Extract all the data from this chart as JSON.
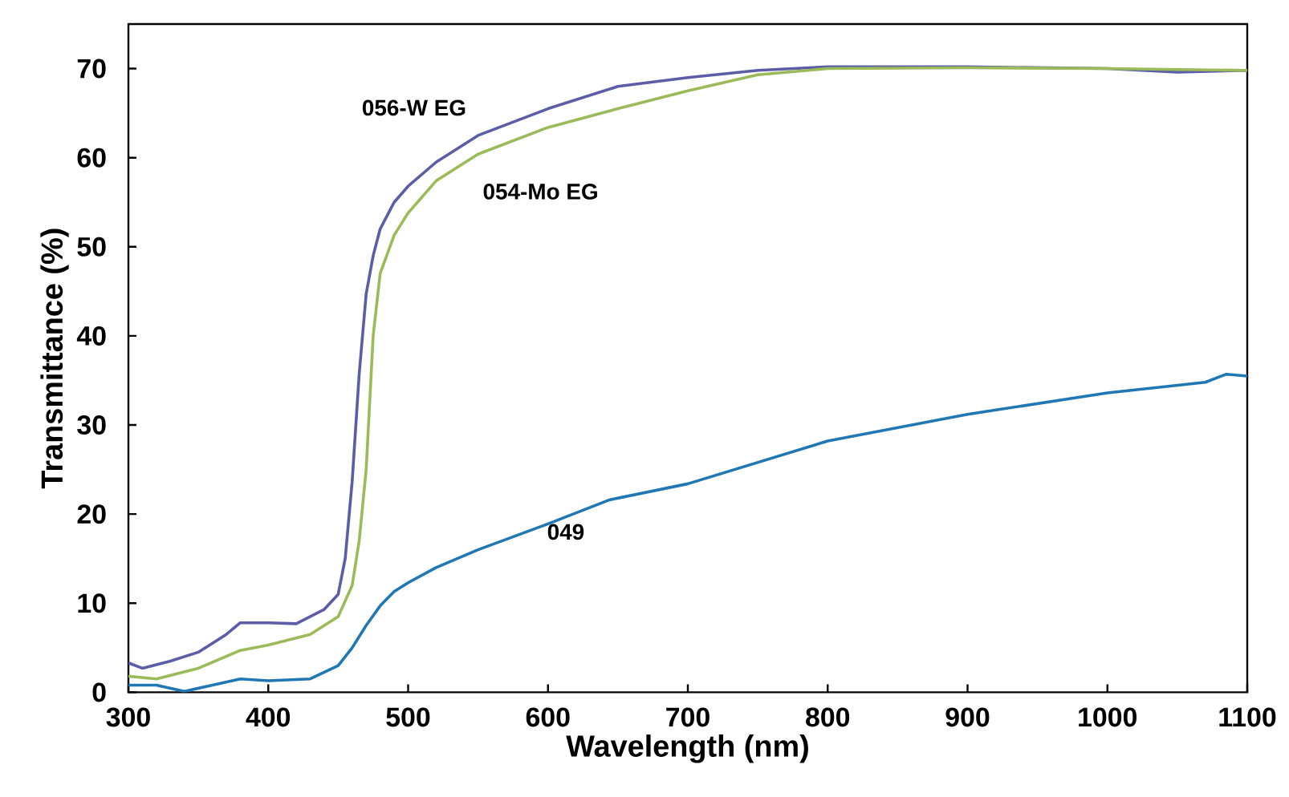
{
  "chart_data": {
    "type": "line",
    "xlabel": "Wavelength (nm)",
    "ylabel": "Transmittance (%)",
    "xlim": [
      300,
      1100
    ],
    "xticks": [
      300,
      400,
      500,
      600,
      700,
      800,
      900,
      1000,
      1100
    ],
    "ylim": [
      0,
      75
    ],
    "yticks": [
      0,
      10,
      20,
      30,
      40,
      50,
      60,
      70
    ],
    "grid": false,
    "legend": false,
    "marker": "none",
    "line_style": "solid",
    "series": [
      {
        "name": "056-W EG",
        "color": "#5b5ea6",
        "x": [
          300,
          310,
          330,
          350,
          370,
          380,
          400,
          420,
          440,
          450,
          455,
          460,
          465,
          470,
          475,
          480,
          490,
          500,
          520,
          550,
          600,
          650,
          700,
          750,
          800,
          900,
          1000,
          1050,
          1100
        ],
        "values": [
          3.3,
          2.7,
          3.5,
          4.5,
          6.5,
          7.8,
          7.8,
          7.7,
          9.3,
          11,
          15,
          23.7,
          35.7,
          44.7,
          49,
          52,
          55,
          56.8,
          59.5,
          62.5,
          65.5,
          68,
          69,
          69.8,
          70.2,
          70.2,
          70,
          69.6,
          69.8
        ]
      },
      {
        "name": "054-Mo EG",
        "color": "#9bbb59",
        "x": [
          300,
          320,
          350,
          380,
          400,
          430,
          450,
          460,
          465,
          470,
          475,
          480,
          490,
          500,
          520,
          550,
          600,
          650,
          700,
          750,
          800,
          900,
          1000,
          1100
        ],
        "values": [
          1.8,
          1.5,
          2.7,
          4.7,
          5.3,
          6.5,
          8.5,
          12,
          17,
          25,
          40,
          47,
          51.3,
          53.8,
          57.4,
          60.4,
          63.4,
          65.5,
          67.5,
          69.3,
          70,
          70.1,
          70,
          69.8
        ]
      },
      {
        "name": "049",
        "color": "#1f77b4",
        "x": [
          300,
          320,
          340,
          360,
          380,
          400,
          430,
          450,
          460,
          470,
          480,
          490,
          500,
          520,
          550,
          600,
          644,
          700,
          800,
          900,
          1000,
          1070,
          1085,
          1100
        ],
        "values": [
          0.8,
          0.8,
          0.1,
          0.8,
          1.5,
          1.3,
          1.5,
          3,
          5,
          7.5,
          9.7,
          11.3,
          12.3,
          14,
          16,
          18.9,
          21.6,
          23.4,
          28.2,
          31.2,
          33.6,
          34.8,
          35.7,
          35.5
        ]
      }
    ]
  }
}
